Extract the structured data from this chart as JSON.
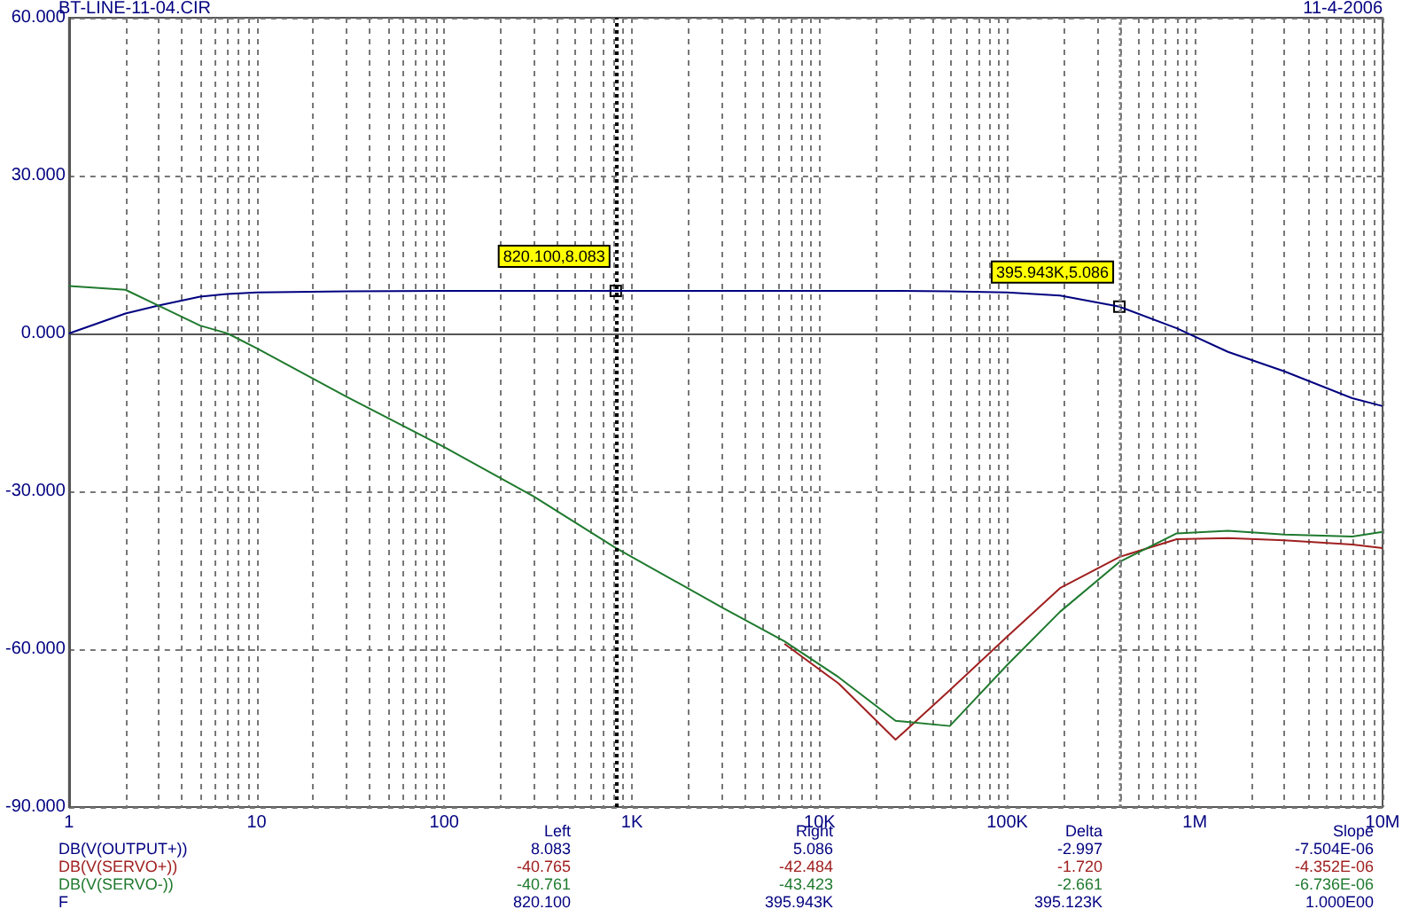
{
  "chart_data": {
    "type": "line",
    "title": "BT-LINE-11-04.CIR",
    "subtitle": "11-4-2006",
    "x": [
      1,
      2,
      3,
      5,
      7,
      10,
      30,
      100,
      300,
      820.1,
      3000,
      6500,
      12600,
      25400,
      49400,
      100000,
      191000,
      395943,
      800000,
      1500000,
      3000000,
      6900000,
      10000000
    ],
    "series": [
      {
        "name": "DB(V(OUTPUT+))",
        "color": "#000080",
        "values": [
          0,
          3.8,
          5.3,
          7.0,
          7.5,
          7.8,
          8.0,
          8.1,
          8.1,
          8.083,
          8.1,
          8.1,
          8.1,
          8.1,
          8.0,
          7.8,
          7.2,
          5.086,
          1.0,
          -3.5,
          -7.2,
          -12.3,
          -13.8
        ]
      },
      {
        "name": "DB(V(SERVO+))",
        "color": "#a02020",
        "values": [
          null,
          null,
          null,
          null,
          null,
          null,
          null,
          null,
          null,
          null,
          null,
          -59,
          -66.5,
          -77.2,
          -67.8,
          -57.6,
          -48.4,
          -42.484,
          -39.1,
          -38.9,
          -39.3,
          -40.1,
          -40.8
        ]
      },
      {
        "name": "DB(V(SERVO-))",
        "color": "#1f7a2e",
        "values": [
          9,
          8.3,
          5.3,
          1.5,
          0,
          -2.8,
          -12,
          -21.6,
          -31,
          -40.761,
          -52,
          -58.5,
          -65.3,
          -73.6,
          -74.6,
          -63,
          -52.9,
          -43.423,
          -38,
          -37.5,
          -38.2,
          -38.6,
          -37.7
        ]
      }
    ],
    "log": "x",
    "grid": true,
    "legend": false,
    "marker": "none",
    "line_style": "solid",
    "xlim": [
      1,
      10000000
    ],
    "xticks": [
      {
        "value": 1,
        "label": "1"
      },
      {
        "value": 10,
        "label": "10"
      },
      {
        "value": 100,
        "label": "100"
      },
      {
        "value": 1000,
        "label": "1K"
      },
      {
        "value": 10000,
        "label": "10K"
      },
      {
        "value": 100000,
        "label": "100K"
      },
      {
        "value": 1000000,
        "label": "1M"
      },
      {
        "value": 10000000,
        "label": "10M"
      }
    ],
    "ylim": [
      -90,
      60
    ],
    "yticks": [
      {
        "value": -90,
        "label": "-90.000"
      },
      {
        "value": -60,
        "label": "-60.000"
      },
      {
        "value": -30,
        "label": "-30.000"
      },
      {
        "value": 0,
        "label": "0.000"
      },
      {
        "value": 30,
        "label": "30.000"
      },
      {
        "value": 60,
        "label": "60.000"
      }
    ],
    "ref_lines": [
      {
        "axis": "x",
        "value": 820.1,
        "color": "#000000",
        "line_style": "dotted"
      },
      {
        "axis": "x",
        "value": 395943,
        "color": "#808080",
        "line_style": "dotted"
      }
    ],
    "annotations": [
      {
        "text": "820.100,8.083",
        "x": 820.1,
        "y": 8.083
      },
      {
        "text": "395.943K,5.086",
        "x": 395943,
        "y": 5.086
      },
      "Left",
      "Right",
      "Delta",
      "Slope",
      "8.083",
      "5.086",
      "-2.997",
      "-7.504E-06",
      "-40.765",
      "-42.484",
      "-1.720",
      "-4.352E-06",
      "-40.761",
      "-43.423",
      "-2.661",
      "-6.736E-06",
      "F",
      "820.100",
      "395.943K",
      "395.123K",
      "1.000E00"
    ]
  }
}
